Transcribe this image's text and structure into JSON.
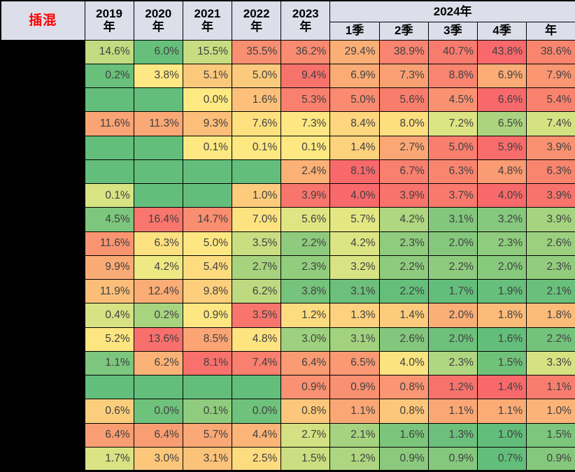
{
  "title": "插混",
  "colors": {
    "header_bg": "#DCDEEA",
    "corner_text": "#FF0000",
    "grid": "#000000",
    "cell_text": "#404040",
    "redacted_label_bg": "#000000",
    "scale_low_green": "#63BE7B",
    "scale_mid_yellow": "#FFEB84",
    "scale_high_red": "#F8696B"
  },
  "chart_data": {
    "type": "heatmap",
    "corner_label": "插混",
    "year_columns": [
      "2019",
      "2020",
      "2021",
      "2022",
      "2023"
    ],
    "year_suffix": "年",
    "group_2024_label": "2024年",
    "subcols_2024": [
      "1季",
      "2季",
      "3季",
      "4季",
      "年"
    ],
    "unit": "percent",
    "legend_note": "row labels redacted (black)",
    "rows": [
      {
        "values": [
          "14.6%",
          "6.0%",
          "15.5%",
          "35.5%",
          "36.2%",
          "29.4%",
          "38.9%",
          "40.7%",
          "43.8%",
          "38.6%"
        ],
        "colors": [
          "#C1DB81",
          "#66C07B",
          "#C8DD81",
          "#F98F71",
          "#F98B70",
          "#FBAF76",
          "#F98470",
          "#F87C6E",
          "#F8696B",
          "#F9856F"
        ]
      },
      {
        "values": [
          "0.2%",
          "3.8%",
          "5.1%",
          "5.0%",
          "9.4%",
          "6.9%",
          "7.3%",
          "8.8%",
          "6.9%",
          "7.9%"
        ],
        "colors": [
          "#68C07B",
          "#FEE883",
          "#FCC87C",
          "#FCCA7C",
          "#F8726C",
          "#FBAB75",
          "#FAA174",
          "#F9846F",
          "#FBAB75",
          "#FA9672"
        ]
      },
      {
        "values": [
          "",
          "",
          "0.0%",
          "1.6%",
          "5.3%",
          "5.0%",
          "5.6%",
          "4.5%",
          "6.6%",
          "5.4%"
        ],
        "colors": [
          "#63BE7B",
          "#63BE7B",
          "#FEE983",
          "#FCC07A",
          "#F9806E",
          "#FA8A70",
          "#F97D6D",
          "#FA9272",
          "#F8696B",
          "#F9826F"
        ]
      },
      {
        "values": [
          "11.6%",
          "11.3%",
          "9.3%",
          "7.6%",
          "7.3%",
          "8.4%",
          "8.0%",
          "7.2%",
          "6.5%",
          "7.4%"
        ],
        "colors": [
          "#FAA374",
          "#FAA875",
          "#FCBE79",
          "#FEE07F",
          "#FEE682",
          "#FDD67E",
          "#FEDF80",
          "#DCE483",
          "#ACD480",
          "#D5E282"
        ]
      },
      {
        "values": [
          "",
          "",
          "0.1%",
          "0.1%",
          "0.1%",
          "1.4%",
          "2.7%",
          "5.0%",
          "5.9%",
          "3.9%"
        ],
        "colors": [
          "#63BE7B",
          "#63BE7B",
          "#FEE882",
          "#FEE882",
          "#FEE882",
          "#FDD27D",
          "#FBA775",
          "#F97E6E",
          "#F86C6B",
          "#FA9170"
        ]
      },
      {
        "values": [
          "",
          "",
          "",
          "",
          "2.4%",
          "8.1%",
          "6.7%",
          "6.3%",
          "4.8%",
          "6.3%"
        ],
        "colors": [
          "#63BE7B",
          "#63BE7B",
          "#63BE7B",
          "#63BE7B",
          "#FBB176",
          "#F8696B",
          "#F97F6E",
          "#F9856F",
          "#FA9B73",
          "#F9856F"
        ]
      },
      {
        "values": [
          "0.1%",
          "",
          "",
          "1.0%",
          "3.9%",
          "4.0%",
          "3.9%",
          "3.7%",
          "4.0%",
          "3.9%"
        ],
        "colors": [
          "#D8E383",
          "#63BE7B",
          "#63BE7B",
          "#FCCB7C",
          "#F8756D",
          "#F8696B",
          "#F8736C",
          "#F9796D",
          "#F8696B",
          "#F8736C"
        ]
      },
      {
        "values": [
          "4.5%",
          "16.4%",
          "14.7%",
          "7.0%",
          "5.6%",
          "5.7%",
          "4.2%",
          "3.1%",
          "3.2%",
          "3.9%"
        ],
        "colors": [
          "#7CC67D",
          "#F8766D",
          "#FA8E70",
          "#FCE380",
          "#DFE583",
          "#E3E782",
          "#AFD680",
          "#83C77D",
          "#86C87D",
          "#A5D37F"
        ]
      },
      {
        "values": [
          "11.6%",
          "6.3%",
          "5.0%",
          "3.5%",
          "2.2%",
          "4.2%",
          "2.3%",
          "2.0%",
          "2.3%",
          "2.6%"
        ],
        "colors": [
          "#F99470",
          "#FDE180",
          "#FEE782",
          "#C9DE81",
          "#8FCB7E",
          "#DCE583",
          "#90CC7E",
          "#85C87D",
          "#90CC7E",
          "#9BD07F"
        ]
      },
      {
        "values": [
          "9.9%",
          "4.2%",
          "5.4%",
          "2.7%",
          "2.3%",
          "3.2%",
          "2.2%",
          "2.2%",
          "2.0%",
          "2.3%"
        ],
        "colors": [
          "#FAAB75",
          "#EFE984",
          "#FDDC7F",
          "#A7D37F",
          "#92CD7E",
          "#D8E383",
          "#8FCB7E",
          "#8FCB7E",
          "#87C97D",
          "#92CD7E"
        ]
      },
      {
        "values": [
          "11.9%",
          "12.4%",
          "9.8%",
          "6.2%",
          "3.8%",
          "3.1%",
          "2.2%",
          "1.7%",
          "1.9%",
          "2.1%"
        ],
        "colors": [
          "#FBBE79",
          "#FAAC75",
          "#FDCF7D",
          "#BEDA81",
          "#75C37C",
          "#6CC07B",
          "#65BF7B",
          "#63BE7B",
          "#66BF7B",
          "#69C07B"
        ]
      },
      {
        "values": [
          "0.4%",
          "0.2%",
          "0.9%",
          "3.5%",
          "1.2%",
          "1.3%",
          "1.4%",
          "2.0%",
          "1.8%",
          "1.8%"
        ],
        "colors": [
          "#D6E283",
          "#A8D37F",
          "#FEE782",
          "#F8756D",
          "#FDDC7F",
          "#FDD17D",
          "#FCCC7C",
          "#FBAE76",
          "#FCBB79",
          "#FCBB79"
        ]
      },
      {
        "values": [
          "5.2%",
          "13.6%",
          "8.5%",
          "4.8%",
          "3.0%",
          "3.1%",
          "2.6%",
          "2.0%",
          "1.6%",
          "2.2%"
        ],
        "colors": [
          "#FDE681",
          "#F8706C",
          "#FBA575",
          "#FEE381",
          "#9ED17F",
          "#A3D27F",
          "#82C77D",
          "#6DC17B",
          "#63BE7B",
          "#74C37C"
        ]
      },
      {
        "values": [
          "1.1%",
          "6.2%",
          "8.1%",
          "7.4%",
          "6.4%",
          "6.5%",
          "4.0%",
          "2.3%",
          "1.5%",
          "3.3%"
        ],
        "colors": [
          "#7CC67D",
          "#FBB277",
          "#F8716C",
          "#F97F6E",
          "#FA9B73",
          "#FA9973",
          "#FAE381",
          "#AFD680",
          "#70C27B",
          "#D5E282"
        ]
      },
      {
        "values": [
          "",
          "",
          "",
          "",
          "0.9%",
          "0.9%",
          "0.8%",
          "1.2%",
          "1.4%",
          "1.1%"
        ],
        "colors": [
          "#63BE7B",
          "#63BE7B",
          "#63BE7B",
          "#63BE7B",
          "#F99172",
          "#F99071",
          "#FA9673",
          "#F8726C",
          "#F8696B",
          "#F97D6E"
        ]
      },
      {
        "values": [
          "0.6%",
          "0.0%",
          "0.1%",
          "0.0%",
          "0.8%",
          "1.1%",
          "0.8%",
          "1.1%",
          "1.1%",
          "1.0%"
        ],
        "colors": [
          "#FBCE7D",
          "#6FC27B",
          "#90CC7E",
          "#6FC27B",
          "#FCC77B",
          "#FBA775",
          "#FCC77B",
          "#FBA775",
          "#FBAC76",
          "#FBB377"
        ]
      },
      {
        "values": [
          "6.4%",
          "6.4%",
          "5.7%",
          "4.4%",
          "2.7%",
          "2.1%",
          "1.6%",
          "1.3%",
          "1.0%",
          "1.5%"
        ],
        "colors": [
          "#F99E72",
          "#F99E72",
          "#FAA875",
          "#FCB578",
          "#D3E182",
          "#A6D37F",
          "#7CC57C",
          "#6CC07B",
          "#63BE7B",
          "#7CC67D"
        ]
      },
      {
        "values": [
          "1.7%",
          "3.0%",
          "3.1%",
          "2.5%",
          "1.5%",
          "1.2%",
          "0.9%",
          "0.9%",
          "0.7%",
          "0.9%"
        ],
        "colors": [
          "#D9E383",
          "#FCC77B",
          "#FBC279",
          "#FDDB7F",
          "#CBDE81",
          "#AED580",
          "#8BCA7E",
          "#85C87D",
          "#63BE7B",
          "#85C87D"
        ]
      }
    ]
  }
}
